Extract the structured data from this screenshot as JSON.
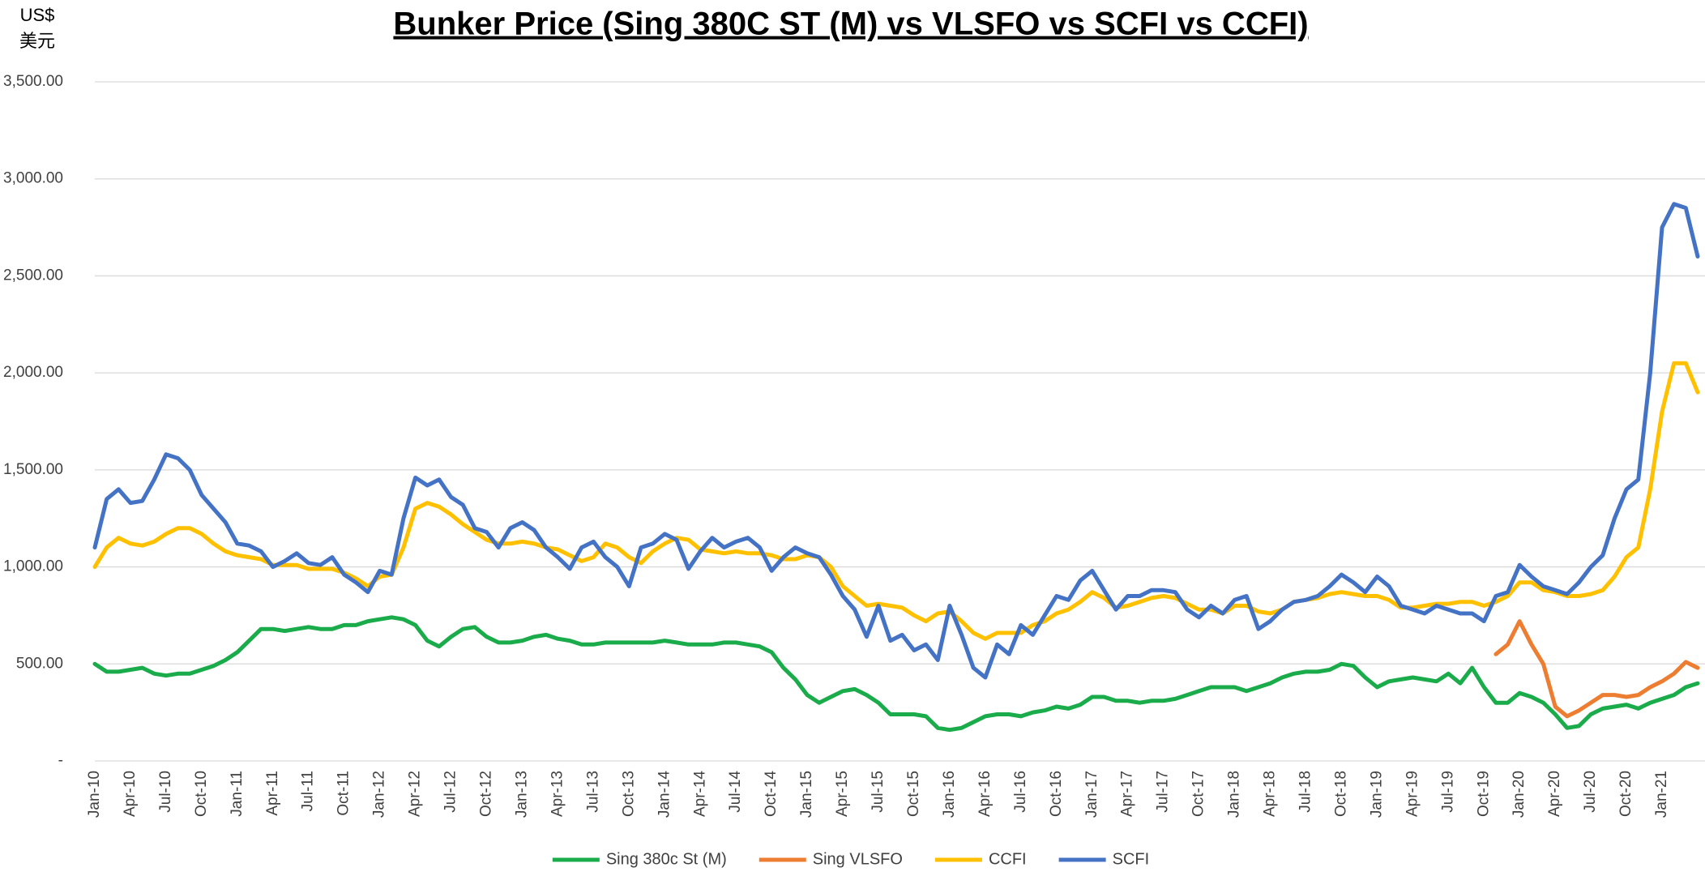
{
  "chart_data": {
    "type": "line",
    "title": "Bunker Price (Sing 380C ST (M) vs VLSFO vs SCFI vs CCFI)",
    "y_unit": [
      "US$",
      "美元"
    ],
    "categories": [
      "Jan-10",
      null,
      null,
      "Apr-10",
      null,
      null,
      "Jul-10",
      null,
      null,
      "Oct-10",
      null,
      null,
      "Jan-11",
      null,
      null,
      "Apr-11",
      null,
      null,
      "Jul-11",
      null,
      null,
      "Oct-11",
      null,
      null,
      "Jan-12",
      null,
      null,
      "Apr-12",
      null,
      null,
      "Jul-12",
      null,
      null,
      "Oct-12",
      null,
      null,
      "Jan-13",
      null,
      null,
      "Apr-13",
      null,
      null,
      "Jul-13",
      null,
      null,
      "Oct-13",
      null,
      null,
      "Jan-14",
      null,
      null,
      "Apr-14",
      null,
      null,
      "Jul-14",
      null,
      null,
      "Oct-14",
      null,
      null,
      "Jan-15",
      null,
      null,
      "Apr-15",
      null,
      null,
      "Jul-15",
      null,
      null,
      "Oct-15",
      null,
      null,
      "Jan-16",
      null,
      null,
      "Apr-16",
      null,
      null,
      "Jul-16",
      null,
      null,
      "Oct-16",
      null,
      null,
      "Jan-17",
      null,
      null,
      "Apr-17",
      null,
      null,
      "Jul-17",
      null,
      null,
      "Oct-17",
      null,
      null,
      "Jan-18",
      null,
      null,
      "Apr-18",
      null,
      null,
      "Jul-18",
      null,
      null,
      "Oct-18",
      null,
      null,
      "Jan-19",
      null,
      null,
      "Apr-19",
      null,
      null,
      "Jul-19",
      null,
      null,
      "Oct-19",
      null,
      null,
      "Jan-20",
      null,
      null,
      "Apr-20",
      null,
      null,
      "Jul-20",
      null,
      null,
      "Oct-20",
      null,
      null,
      "Jan-21",
      null,
      null,
      null
    ],
    "series": [
      {
        "name": "Sing 380c St (M)",
        "color": "#1aab4a",
        "values": [
          500,
          460,
          460,
          470,
          480,
          450,
          440,
          450,
          450,
          470,
          490,
          520,
          560,
          620,
          680,
          680,
          670,
          680,
          690,
          680,
          680,
          700,
          700,
          720,
          730,
          740,
          730,
          700,
          620,
          590,
          640,
          680,
          690,
          640,
          610,
          610,
          620,
          640,
          650,
          630,
          620,
          600,
          600,
          610,
          610,
          610,
          610,
          610,
          620,
          610,
          600,
          600,
          600,
          610,
          610,
          600,
          590,
          560,
          480,
          420,
          340,
          300,
          330,
          360,
          370,
          340,
          300,
          240,
          240,
          240,
          230,
          170,
          160,
          170,
          200,
          230,
          240,
          240,
          230,
          250,
          260,
          280,
          270,
          290,
          330,
          330,
          310,
          310,
          300,
          310,
          310,
          320,
          340,
          360,
          380,
          380,
          380,
          360,
          380,
          400,
          430,
          450,
          460,
          460,
          470,
          500,
          490,
          430,
          380,
          410,
          420,
          430,
          420,
          410,
          450,
          400,
          480,
          380,
          300,
          300,
          350,
          330,
          300,
          240,
          170,
          180,
          240,
          270,
          280,
          290,
          270,
          300,
          320,
          340,
          380,
          400
        ]
      },
      {
        "name": "Sing VLSFO",
        "color": "#ed7d31",
        "values": [
          null,
          null,
          null,
          null,
          null,
          null,
          null,
          null,
          null,
          null,
          null,
          null,
          null,
          null,
          null,
          null,
          null,
          null,
          null,
          null,
          null,
          null,
          null,
          null,
          null,
          null,
          null,
          null,
          null,
          null,
          null,
          null,
          null,
          null,
          null,
          null,
          null,
          null,
          null,
          null,
          null,
          null,
          null,
          null,
          null,
          null,
          null,
          null,
          null,
          null,
          null,
          null,
          null,
          null,
          null,
          null,
          null,
          null,
          null,
          null,
          null,
          null,
          null,
          null,
          null,
          null,
          null,
          null,
          null,
          null,
          null,
          null,
          null,
          null,
          null,
          null,
          null,
          null,
          null,
          null,
          null,
          null,
          null,
          null,
          null,
          null,
          null,
          null,
          null,
          null,
          null,
          null,
          null,
          null,
          null,
          null,
          null,
          null,
          null,
          null,
          null,
          null,
          null,
          null,
          null,
          null,
          null,
          null,
          null,
          null,
          null,
          null,
          null,
          null,
          null,
          null,
          null,
          null,
          550,
          600,
          720,
          600,
          500,
          280,
          230,
          260,
          300,
          340,
          340,
          330,
          340,
          380,
          410,
          450,
          510,
          480
        ]
      },
      {
        "name": "CCFI",
        "color": "#ffc000",
        "values": [
          1000,
          1100,
          1150,
          1120,
          1110,
          1130,
          1170,
          1200,
          1200,
          1170,
          1120,
          1080,
          1060,
          1050,
          1040,
          1010,
          1010,
          1010,
          990,
          990,
          990,
          970,
          940,
          900,
          950,
          960,
          1100,
          1300,
          1330,
          1310,
          1270,
          1220,
          1180,
          1140,
          1120,
          1120,
          1130,
          1120,
          1100,
          1090,
          1060,
          1030,
          1050,
          1120,
          1100,
          1050,
          1020,
          1080,
          1120,
          1150,
          1140,
          1090,
          1080,
          1070,
          1080,
          1070,
          1070,
          1060,
          1040,
          1040,
          1060,
          1050,
          1000,
          900,
          850,
          800,
          810,
          800,
          790,
          750,
          720,
          760,
          770,
          720,
          660,
          630,
          660,
          660,
          660,
          700,
          720,
          760,
          780,
          820,
          870,
          840,
          790,
          800,
          820,
          840,
          850,
          840,
          810,
          780,
          780,
          760,
          800,
          800,
          770,
          760,
          780,
          820,
          830,
          840,
          860,
          870,
          860,
          850,
          850,
          830,
          790,
          790,
          800,
          810,
          810,
          820,
          820,
          800,
          820,
          850,
          920,
          920,
          880,
          870,
          850,
          850,
          860,
          880,
          950,
          1050,
          1100,
          1400,
          1800,
          2050,
          2050,
          1900
        ]
      },
      {
        "name": "SCFI",
        "color": "#4472c4",
        "values": [
          1100,
          1350,
          1400,
          1330,
          1340,
          1450,
          1580,
          1560,
          1500,
          1370,
          1300,
          1230,
          1120,
          1110,
          1080,
          1000,
          1030,
          1070,
          1020,
          1010,
          1050,
          960,
          920,
          870,
          980,
          960,
          1250,
          1460,
          1420,
          1450,
          1360,
          1320,
          1200,
          1180,
          1100,
          1200,
          1230,
          1190,
          1100,
          1050,
          990,
          1100,
          1130,
          1050,
          1000,
          900,
          1100,
          1120,
          1170,
          1140,
          990,
          1080,
          1150,
          1100,
          1130,
          1150,
          1100,
          980,
          1050,
          1100,
          1070,
          1050,
          960,
          850,
          780,
          640,
          800,
          620,
          650,
          570,
          600,
          520,
          800,
          650,
          480,
          430,
          600,
          550,
          700,
          650,
          750,
          850,
          830,
          930,
          980,
          880,
          780,
          850,
          850,
          880,
          880,
          870,
          780,
          740,
          800,
          760,
          830,
          850,
          680,
          720,
          780,
          820,
          830,
          850,
          900,
          960,
          920,
          870,
          950,
          900,
          800,
          780,
          760,
          800,
          780,
          760,
          760,
          720,
          850,
          870,
          1010,
          950,
          900,
          880,
          860,
          920,
          1000,
          1060,
          1250,
          1400,
          1450,
          2000,
          2750,
          2870,
          2850,
          2600
        ]
      }
    ],
    "ylim": [
      0,
      3500
    ],
    "yticks": [
      {
        "value": 0,
        "label": "-"
      },
      {
        "value": 500,
        "label": "500.00"
      },
      {
        "value": 1000,
        "label": "1,000.00"
      },
      {
        "value": 1500,
        "label": "1,500.00"
      },
      {
        "value": 2000,
        "label": "2,000.00"
      },
      {
        "value": 2500,
        "label": "2,500.00"
      },
      {
        "value": 3000,
        "label": "3,000.00"
      },
      {
        "value": 3500,
        "label": "3,500.00"
      }
    ],
    "grid": true,
    "legend": "bottom"
  }
}
